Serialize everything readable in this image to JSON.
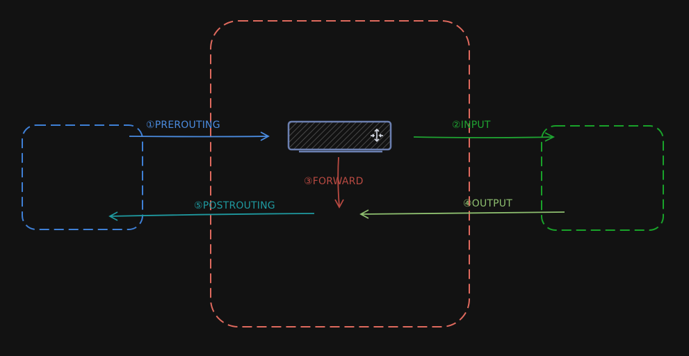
{
  "colors": {
    "background": "#121212",
    "red_region": "#e06a5e",
    "blue_region": "#3f80d6",
    "green_region": "#19a32a",
    "router_fill": "#2a2a2a",
    "router_stroke": "#6b7fb0",
    "prerouting": "#4b8ce0",
    "input": "#1fa532",
    "forward": "#b94a42",
    "output": "#8fc070",
    "postrouting": "#1f9aa0"
  },
  "icons": {
    "router": "router-icon"
  },
  "labels": {
    "prerouting": "①PREROUTING",
    "input": "②INPUT",
    "forward": "③FORWARD",
    "output": "④OUTPUT",
    "postrouting": "⑤POSTROUTING"
  }
}
